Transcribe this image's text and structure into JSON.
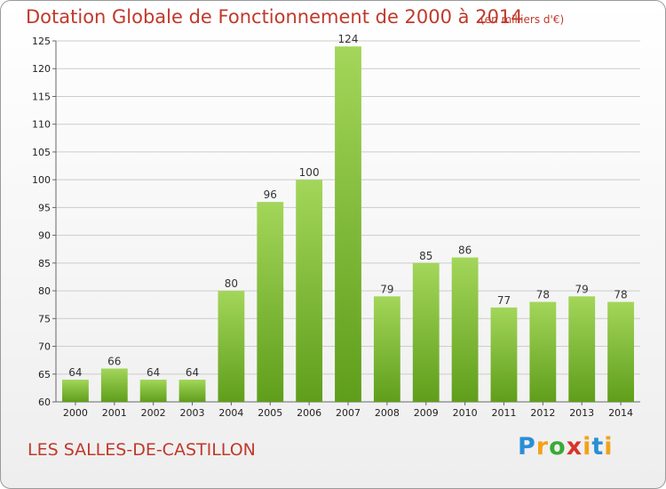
{
  "header": {
    "title": "Dotation Globale de Fonctionnement de 2000 à 2014",
    "subtitle": "(en milliers d'€)"
  },
  "footer": {
    "city": "LES SALLES-DE-CASTILLON",
    "logo": "Proxiti"
  },
  "colors": {
    "bar_top": "#a3d65a",
    "bar_bottom": "#5f9e1b",
    "title": "#c0392b",
    "grid": "#cccccc"
  },
  "chart_data": {
    "type": "bar",
    "title": "Dotation Globale de Fonctionnement de 2000 à 2014",
    "subtitle": "(en milliers d'€)",
    "categories": [
      "2000",
      "2001",
      "2002",
      "2003",
      "2004",
      "2005",
      "2006",
      "2007",
      "2008",
      "2009",
      "2010",
      "2011",
      "2012",
      "2013",
      "2014"
    ],
    "values": [
      64,
      66,
      64,
      64,
      80,
      96,
      100,
      124,
      79,
      85,
      86,
      77,
      78,
      79,
      78
    ],
    "ylim": [
      60,
      125
    ],
    "yticks": [
      60,
      65,
      70,
      75,
      80,
      85,
      90,
      95,
      100,
      105,
      110,
      115,
      120,
      125
    ],
    "grid": true,
    "data_labels": true,
    "xlabel": "",
    "ylabel": ""
  }
}
